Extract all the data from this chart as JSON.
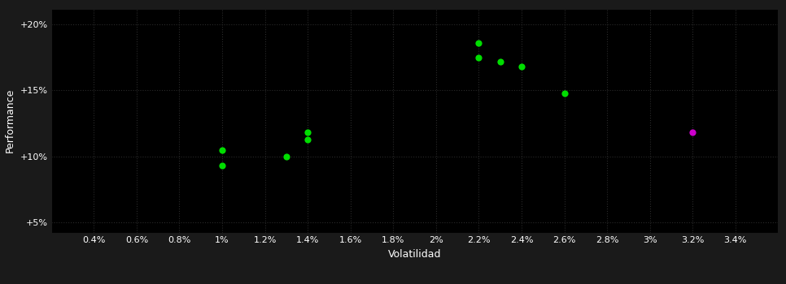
{
  "background_color": "#1a1a1a",
  "plot_bg_color": "#000000",
  "grid_color": "#2a2a2a",
  "xlabel": "Volatilidad",
  "ylabel": "Performance",
  "tick_color": "#ffffff",
  "xlim": [
    0.002,
    0.036
  ],
  "ylim": [
    0.042,
    0.212
  ],
  "xticks": [
    0.004,
    0.006,
    0.008,
    0.01,
    0.012,
    0.014,
    0.016,
    0.018,
    0.02,
    0.022,
    0.024,
    0.026,
    0.028,
    0.03,
    0.032,
    0.034
  ],
  "yticks": [
    0.05,
    0.1,
    0.15,
    0.2
  ],
  "ytick_labels": [
    "+5%",
    "+10%",
    "+15%",
    "+20%"
  ],
  "xtick_labels": [
    "0.4%",
    "0.6%",
    "0.8%",
    "1%",
    "1.2%",
    "1.4%",
    "1.6%",
    "1.8%",
    "2%",
    "2.2%",
    "2.4%",
    "2.6%",
    "2.8%",
    "3%",
    "3.2%",
    "3.4%"
  ],
  "green_points": [
    [
      0.01,
      0.105
    ],
    [
      0.01,
      0.093
    ],
    [
      0.013,
      0.1
    ],
    [
      0.014,
      0.118
    ],
    [
      0.014,
      0.113
    ],
    [
      0.022,
      0.186
    ],
    [
      0.022,
      0.175
    ],
    [
      0.023,
      0.172
    ],
    [
      0.024,
      0.168
    ],
    [
      0.026,
      0.148
    ]
  ],
  "magenta_points": [
    [
      0.032,
      0.118
    ]
  ],
  "green_color": "#00dd00",
  "magenta_color": "#cc00cc",
  "marker_size": 35,
  "fontsize_ticks": 8,
  "fontsize_label": 9
}
